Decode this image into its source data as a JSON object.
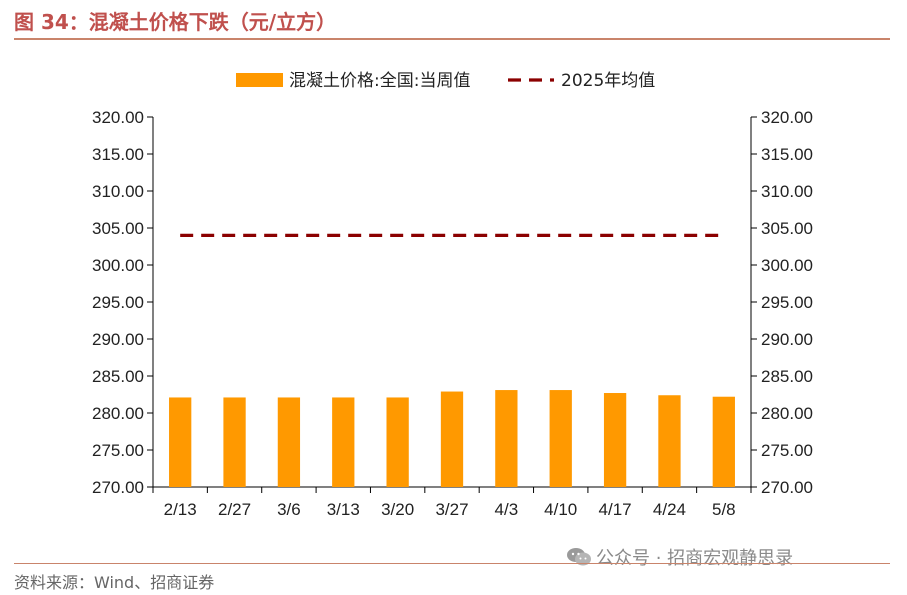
{
  "figure": {
    "title": "图 34：混凝土价格下跌（元/立方）",
    "source": "资料来源：Wind、招商证券",
    "watermark": "公众号 · 招商宏观静思录",
    "watermark_icon": "wechat-icon"
  },
  "chart_data": {
    "type": "bar",
    "categories": [
      "2/13",
      "2/27",
      "3/6",
      "3/13",
      "3/20",
      "3/27",
      "4/3",
      "4/10",
      "4/17",
      "4/24",
      "5/8"
    ],
    "series": [
      {
        "name": "混凝土价格:全国:当周值",
        "type": "bar",
        "color": "#FF9900",
        "values": [
          282.1,
          282.1,
          282.1,
          282.1,
          282.1,
          282.9,
          283.1,
          283.1,
          282.7,
          282.4,
          282.2
        ]
      },
      {
        "name": "2025年均值",
        "type": "line",
        "style": "dashed",
        "color": "#8B0000",
        "values": [
          304.0,
          304.0,
          304.0,
          304.0,
          304.0,
          304.0,
          304.0,
          304.0,
          304.0,
          304.0,
          304.0
        ]
      }
    ],
    "ylim": [
      270,
      320
    ],
    "y_ticks": [
      "270.00",
      "275.00",
      "280.00",
      "285.00",
      "290.00",
      "295.00",
      "300.00",
      "305.00",
      "310.00",
      "315.00",
      "320.00"
    ],
    "y_ticks_right": [
      "270.00",
      "275.00",
      "280.00",
      "285.00",
      "290.00",
      "295.00",
      "300.00",
      "305.00",
      "310.00",
      "315.00",
      "320.00"
    ],
    "grid": false,
    "legend_position": "top-center"
  }
}
